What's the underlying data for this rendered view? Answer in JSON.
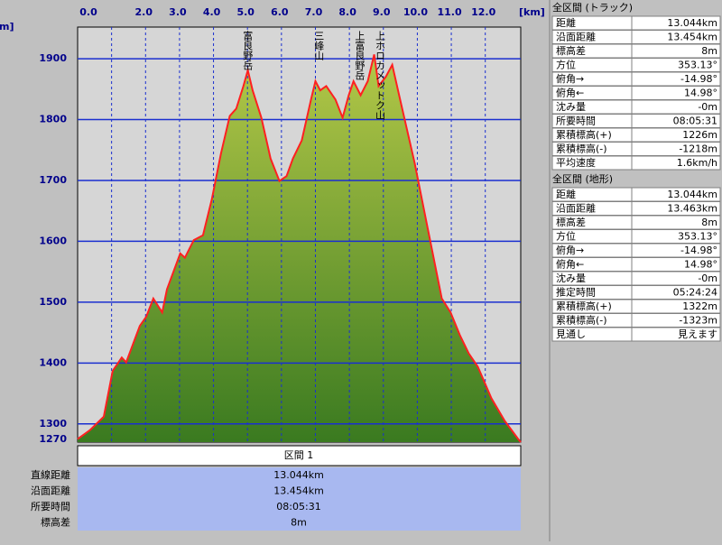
{
  "chart_data": {
    "type": "area",
    "x_unit": "[km]",
    "y_unit": "[m]",
    "x": [
      0,
      0.37,
      0.77,
      1.03,
      1.3,
      1.43,
      1.83,
      2.02,
      2.23,
      2.49,
      2.63,
      3.02,
      3.16,
      3.42,
      3.69,
      3.95,
      4.22,
      4.48,
      4.67,
      4.88,
      5.01,
      5.15,
      5.41,
      5.68,
      5.94,
      6.15,
      6.34,
      6.6,
      6.87,
      7.0,
      7.14,
      7.32,
      7.59,
      7.8,
      7.98,
      8.12,
      8.33,
      8.54,
      8.73,
      8.86,
      9.07,
      9.26,
      9.52,
      9.92,
      10.32,
      10.72,
      10.98,
      11.25,
      11.51,
      11.78,
      12.18,
      12.57,
      12.97,
      13.044
    ],
    "series": [
      {
        "color": "#ff2020",
        "fill": "#7aa838",
        "values": [
          1275,
          1290,
          1312,
          1387,
          1409,
          1401,
          1461,
          1476,
          1506,
          1483,
          1521,
          1580,
          1573,
          1602,
          1610,
          1669,
          1744,
          1806,
          1818,
          1855,
          1881,
          1848,
          1803,
          1736,
          1699,
          1707,
          1736,
          1766,
          1833,
          1863,
          1848,
          1855,
          1833,
          1803,
          1840,
          1863,
          1840,
          1863,
          1907,
          1855,
          1870,
          1890,
          1826,
          1729,
          1617,
          1506,
          1483,
          1446,
          1416,
          1394,
          1342,
          1305,
          1275,
          1270
        ]
      }
    ],
    "xlim": [
      0,
      13.044
    ],
    "ylim": [
      1270,
      1952
    ],
    "xticks": [
      {
        "value": 0,
        "label": "0.0"
      },
      {
        "value": 1,
        "label": null
      },
      {
        "value": 2,
        "label": "2.0"
      },
      {
        "value": 3,
        "label": "3.0"
      },
      {
        "value": 4,
        "label": "4.0"
      },
      {
        "value": 5,
        "label": "5.0"
      },
      {
        "value": 6,
        "label": "6.0"
      },
      {
        "value": 7,
        "label": "7.0"
      },
      {
        "value": 8,
        "label": "8.0"
      },
      {
        "value": 9,
        "label": "9.0"
      },
      {
        "value": 10,
        "label": "10.0"
      },
      {
        "value": 11,
        "label": "11.0"
      },
      {
        "value": 12,
        "label": "12.0"
      }
    ],
    "yticks": [
      1270,
      1300,
      1400,
      1500,
      1600,
      1700,
      1800,
      1900
    ],
    "grid": true,
    "annotations": [
      {
        "x": 5.0,
        "text": "富良野岳"
      },
      {
        "x": 7.1,
        "text": "三峰山"
      },
      {
        "x": 8.3,
        "text": "上富良野岳"
      },
      {
        "x": 8.9,
        "text": "上ホロカメットク山"
      }
    ]
  },
  "panels": [
    {
      "title": "全区間 (トラック)",
      "rows": [
        [
          "距離",
          "13.044km"
        ],
        [
          "沿面距離",
          "13.454km"
        ],
        [
          "標高差",
          "8m"
        ],
        [
          "方位",
          "353.13°"
        ],
        [
          "俯角→",
          "-14.98°"
        ],
        [
          "俯角←",
          "14.98°"
        ],
        [
          "沈み量",
          "-0m"
        ],
        [
          "所要時間",
          "08:05:31"
        ],
        [
          "累積標高(+)",
          "1226m"
        ],
        [
          "累積標高(-)",
          "-1218m"
        ],
        [
          "平均速度",
          "1.6km/h"
        ]
      ]
    },
    {
      "title": "全区間 (地形)",
      "rows": [
        [
          "距離",
          "13.044km"
        ],
        [
          "沿面距離",
          "13.463km"
        ],
        [
          "標高差",
          "8m"
        ],
        [
          "方位",
          "353.13°"
        ],
        [
          "俯角→",
          "-14.98°"
        ],
        [
          "俯角←",
          "14.98°"
        ],
        [
          "沈み量",
          "-0m"
        ],
        [
          "推定時間",
          "05:24:24"
        ],
        [
          "累積標高(+)",
          "1322m"
        ],
        [
          "累積標高(-)",
          "-1323m"
        ],
        [
          "見通し",
          "見えます"
        ]
      ]
    }
  ],
  "section": {
    "header": "区間 1",
    "rows": [
      [
        "直線距離",
        "13.044km"
      ],
      [
        "沿面距離",
        "13.454km"
      ],
      [
        "所要時間",
        "08:05:31"
      ],
      [
        "標高差",
        "8m"
      ]
    ]
  }
}
